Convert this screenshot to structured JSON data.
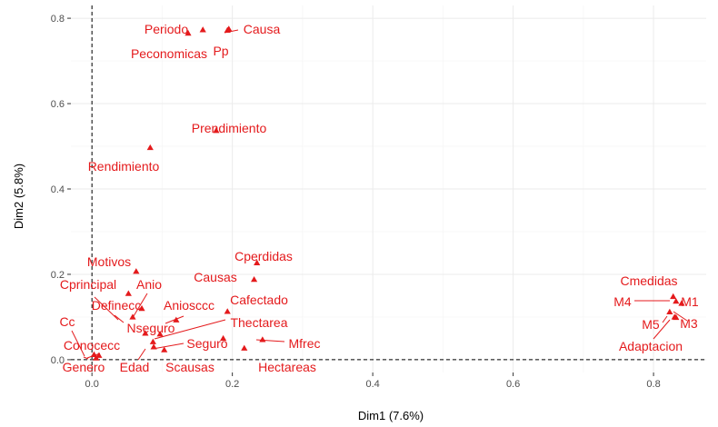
{
  "chart_data": {
    "type": "scatter",
    "title": "",
    "xlabel": "Dim1 (7.6%)",
    "ylabel": "Dim2 (5.8%)",
    "xlim": [
      -0.03,
      0.875
    ],
    "ylim": [
      -0.03,
      0.83
    ],
    "x_ticks": [
      0,
      0.2,
      0.4,
      0.6,
      0.8
    ],
    "y_ticks": [
      0,
      0.2,
      0.4,
      0.6,
      0.8
    ],
    "x_tick_labels": [
      "0.0",
      "0.2",
      "0.4",
      "0.6",
      "0.8"
    ],
    "y_tick_labels": [
      "0.0",
      "0.2",
      "0.4",
      "0.6",
      "0.8"
    ],
    "color": "#e41a1c",
    "reference_lines": {
      "x": 0,
      "y": 0,
      "style": "dashed"
    },
    "points": [
      {
        "label": "Periodo",
        "x": 0.137,
        "y": 0.765
      },
      {
        "label": "Causa",
        "x": 0.195,
        "y": 0.775
      },
      {
        "label": "Peconomicas",
        "x": 0.158,
        "y": 0.773
      },
      {
        "label": "Pp",
        "x": 0.193,
        "y": 0.772
      },
      {
        "label": "Prendimiento",
        "x": 0.177,
        "y": 0.537
      },
      {
        "label": "Rendimiento",
        "x": 0.083,
        "y": 0.497
      },
      {
        "label": "Cperdidas",
        "x": 0.235,
        "y": 0.227
      },
      {
        "label": "Motivos",
        "x": 0.063,
        "y": 0.207
      },
      {
        "label": "Causas",
        "x": 0.231,
        "y": 0.188
      },
      {
        "label": "Cprincipal",
        "x": 0.052,
        "y": 0.155
      },
      {
        "label": "Anio",
        "x": 0.071,
        "y": 0.12
      },
      {
        "label": "Cafectado",
        "x": 0.193,
        "y": 0.113
      },
      {
        "label": "Aniosccc",
        "x": 0.12,
        "y": 0.093
      },
      {
        "label": "Definecc",
        "x": 0.058,
        "y": 0.1
      },
      {
        "label": "Thectarea",
        "x": 0.097,
        "y": 0.06
      },
      {
        "label": "Nseguro",
        "x": 0.076,
        "y": 0.062
      },
      {
        "label": "Cc",
        "x": 0.003,
        "y": 0.012
      },
      {
        "label": "Mfrec",
        "x": 0.243,
        "y": 0.047
      },
      {
        "label": "Conocecc",
        "x": 0.01,
        "y": 0.01
      },
      {
        "label": "Seguro",
        "x": 0.087,
        "y": 0.042
      },
      {
        "label": "Edad",
        "x": 0.088,
        "y": 0.03
      },
      {
        "label": "Genero",
        "x": 0.006,
        "y": 0.004
      },
      {
        "label": "Scausas",
        "x": 0.103,
        "y": 0.023
      },
      {
        "label": "Hectareas",
        "x": 0.217,
        "y": 0.027
      },
      {
        "label": "Cmedidas",
        "x": 0.828,
        "y": 0.148
      },
      {
        "label": "M4",
        "x": 0.832,
        "y": 0.137
      },
      {
        "label": "M1",
        "x": 0.84,
        "y": 0.132
      },
      {
        "label": "M5",
        "x": 0.823,
        "y": 0.112
      },
      {
        "label": "M3",
        "x": 0.83,
        "y": 0.1
      },
      {
        "label": "Adaptacion",
        "x": 0.832,
        "y": 0.099
      },
      {
        "label": "",
        "x": 0.187,
        "y": 0.05
      }
    ]
  }
}
